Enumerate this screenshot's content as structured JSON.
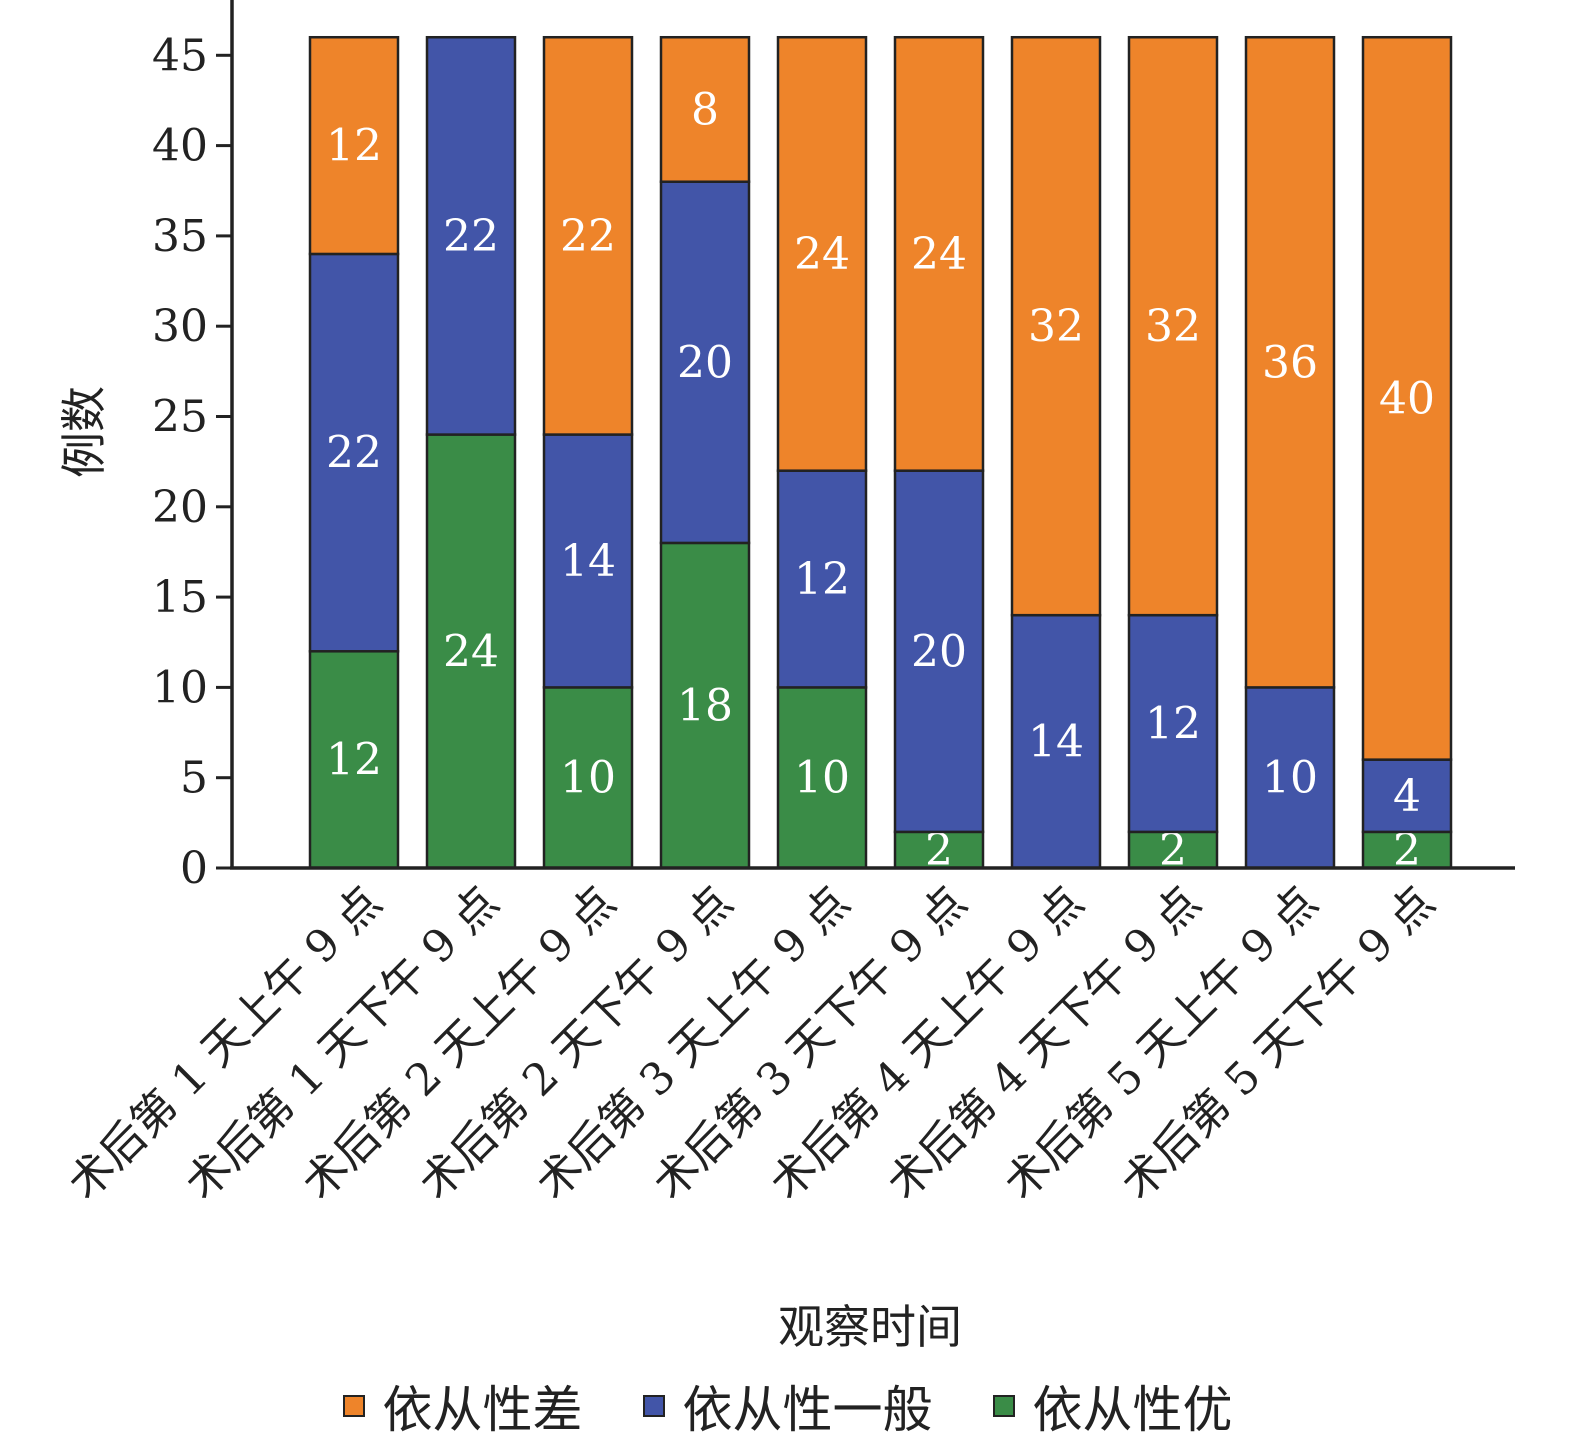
{
  "chart_data": {
    "type": "bar",
    "stacked": true,
    "xlabel": "观察时间",
    "ylabel": "例数",
    "ylim": [
      0,
      46
    ],
    "yticks": [
      0,
      5,
      10,
      15,
      20,
      25,
      30,
      35,
      40,
      45
    ],
    "categories": [
      "术后第 1 天上午 9 点",
      "术后第 1 天下午 9 点",
      "术后第 2 天上午 9 点",
      "术后第 2 天下午 9 点",
      "术后第 3 天上午 9 点",
      "术后第 3 天下午 9 点",
      "术后第 4 天上午 9 点",
      "术后第 4 天下午 9 点",
      "术后第 5 天上午 9 点",
      "术后第 5 天下午 9 点"
    ],
    "series": [
      {
        "name": "依从性优",
        "color": "#3a8c47",
        "values": [
          12,
          24,
          10,
          18,
          10,
          2,
          0,
          2,
          0,
          2
        ]
      },
      {
        "name": "依从性一般",
        "color": "#4255a8",
        "values": [
          22,
          22,
          14,
          20,
          12,
          20,
          14,
          12,
          10,
          4
        ]
      },
      {
        "name": "依从性差",
        "color": "#ee842a",
        "values": [
          12,
          0,
          22,
          8,
          24,
          24,
          32,
          32,
          36,
          40
        ]
      }
    ],
    "legend_order": [
      2,
      1,
      0
    ],
    "legend_position": "bottom"
  }
}
